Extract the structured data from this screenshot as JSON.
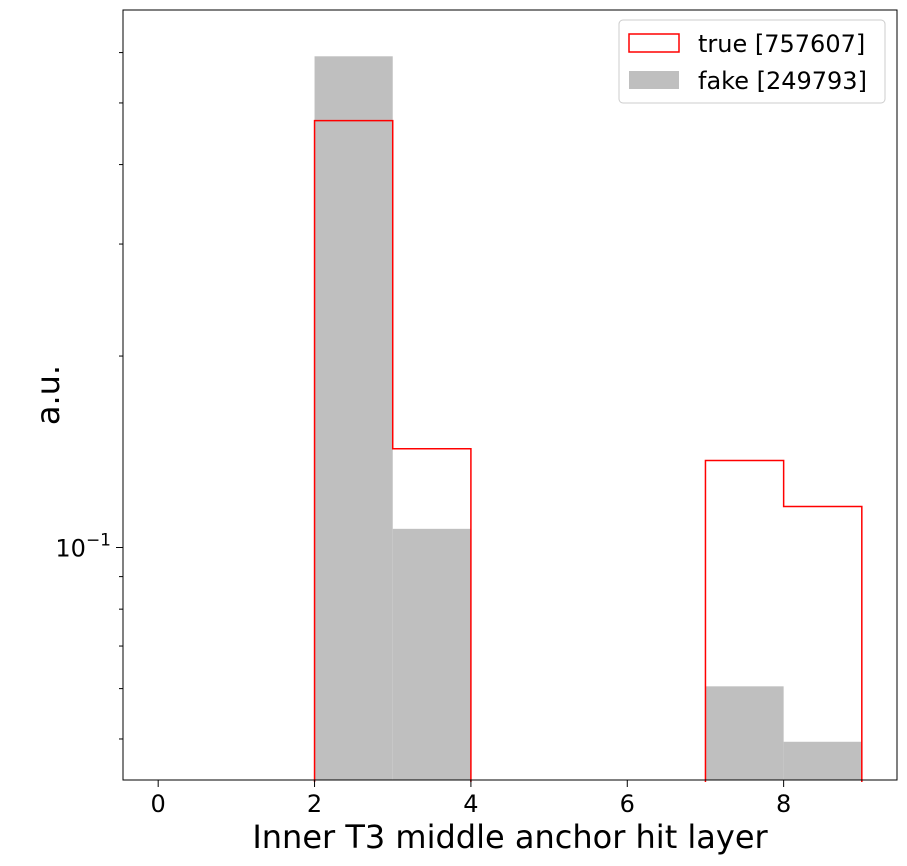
{
  "chart_data": {
    "type": "histogram",
    "xlabel": "Inner T3 middle anchor hit layer",
    "ylabel": "a.u.",
    "yscale": "log",
    "xlim": [
      -0.45,
      9.45
    ],
    "ylim": [
      0.0431,
      0.7
    ],
    "xticks": [
      0,
      2,
      4,
      6,
      8
    ],
    "xtick_labels": [
      "0",
      "2",
      "4",
      "6",
      "8"
    ],
    "ytick_major_labels": [
      {
        "value": 0.1,
        "base": "10",
        "exponent": "−1"
      }
    ],
    "bin_edges": [
      0,
      1,
      2,
      3,
      4,
      5,
      6,
      7,
      8,
      9
    ],
    "series": [
      {
        "name": "true [757607]",
        "style": "step",
        "color": "#ff0000",
        "values": [
          0,
          0,
          0.469,
          0.143,
          0,
          0,
          0,
          0.137,
          0.116
        ]
      },
      {
        "name": "fake [249793]",
        "style": "filled",
        "color": "#bfbfbf",
        "values": [
          0,
          0,
          0.592,
          0.107,
          0,
          0,
          0,
          0.0605,
          0.0495
        ]
      }
    ],
    "legend": {
      "position": "top-right",
      "entries": [
        "true [757607]",
        "fake [249793]"
      ]
    },
    "grid": false
  }
}
